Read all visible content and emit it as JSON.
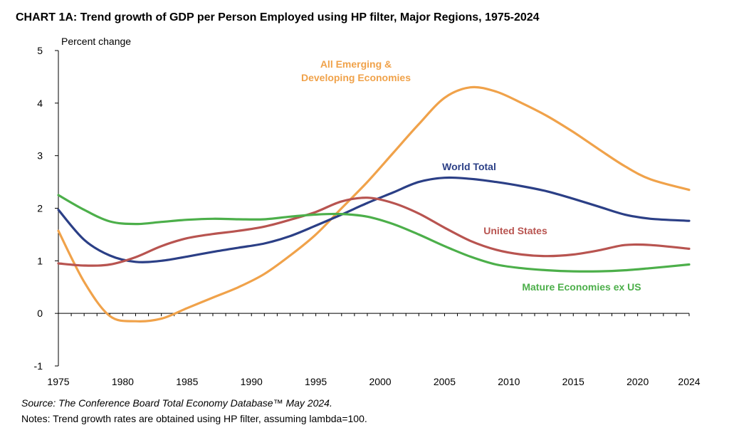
{
  "chart_data": {
    "type": "line",
    "title": "CHART 1A: Trend growth of GDP per Person Employed using HP filter, Major Regions, 1975-2024",
    "ylabel": "Percent change",
    "xlabel": "",
    "ylim": [
      -1,
      5
    ],
    "xlim": [
      1975,
      2024
    ],
    "y_ticks": [
      "5",
      "4",
      "3",
      "2",
      "1",
      "0",
      "-1"
    ],
    "y_tick_values": [
      5,
      4,
      3,
      2,
      1,
      0,
      -1
    ],
    "x_ticks": [
      "1975",
      "1980",
      "1985",
      "1990",
      "1995",
      "2000",
      "2005",
      "2010",
      "2015",
      "2020",
      "2024"
    ],
    "x_tick_values": [
      1975,
      1980,
      1985,
      1990,
      1995,
      2000,
      2005,
      2010,
      2015,
      2020,
      2024
    ],
    "grid": false,
    "legend": "inline labels",
    "series": [
      {
        "name": "All Emerging & Developing Economies",
        "label_lines": [
          "All Emerging &",
          "Developing Economies"
        ],
        "color": "#F0A24A",
        "x": [
          1975,
          1977,
          1979,
          1981,
          1983,
          1985,
          1987,
          1989,
          1991,
          1993,
          1995,
          1997,
          1999,
          2001,
          2003,
          2005,
          2007,
          2009,
          2011,
          2013,
          2015,
          2017,
          2019,
          2021,
          2024
        ],
        "values": [
          1.57,
          0.6,
          -0.05,
          -0.15,
          -0.1,
          0.1,
          0.3,
          0.5,
          0.75,
          1.1,
          1.5,
          2.0,
          2.5,
          3.05,
          3.6,
          4.1,
          4.3,
          4.22,
          4.0,
          3.75,
          3.45,
          3.12,
          2.8,
          2.55,
          2.35
        ]
      },
      {
        "name": "World Total",
        "label_lines": [
          "World Total"
        ],
        "color": "#2B3F86",
        "x": [
          1975,
          1977,
          1979,
          1981,
          1983,
          1985,
          1987,
          1989,
          1991,
          1993,
          1995,
          1997,
          1999,
          2001,
          2003,
          2005,
          2007,
          2009,
          2011,
          2013,
          2015,
          2017,
          2019,
          2021,
          2024
        ],
        "values": [
          1.97,
          1.4,
          1.1,
          0.98,
          1.0,
          1.08,
          1.17,
          1.25,
          1.33,
          1.47,
          1.67,
          1.88,
          2.1,
          2.3,
          2.5,
          2.58,
          2.56,
          2.5,
          2.42,
          2.32,
          2.18,
          2.03,
          1.88,
          1.8,
          1.76
        ]
      },
      {
        "name": "United States",
        "label_lines": [
          "United States"
        ],
        "color": "#B85450",
        "x": [
          1975,
          1977,
          1979,
          1981,
          1983,
          1985,
          1987,
          1989,
          1991,
          1993,
          1995,
          1997,
          1999,
          2001,
          2003,
          2005,
          2007,
          2009,
          2011,
          2013,
          2015,
          2017,
          2019,
          2021,
          2024
        ],
        "values": [
          0.95,
          0.91,
          0.93,
          1.07,
          1.28,
          1.43,
          1.51,
          1.57,
          1.65,
          1.78,
          1.93,
          2.13,
          2.2,
          2.1,
          1.9,
          1.63,
          1.38,
          1.21,
          1.12,
          1.09,
          1.12,
          1.2,
          1.3,
          1.3,
          1.23
        ]
      },
      {
        "name": "Mature Economies ex US",
        "label_lines": [
          "Mature Economies ex US"
        ],
        "color": "#4CAF4A",
        "x": [
          1975,
          1977,
          1979,
          1981,
          1983,
          1985,
          1987,
          1989,
          1991,
          1993,
          1995,
          1997,
          1999,
          2001,
          2003,
          2005,
          2007,
          2009,
          2011,
          2013,
          2015,
          2017,
          2019,
          2021,
          2024
        ],
        "values": [
          2.25,
          1.97,
          1.75,
          1.7,
          1.74,
          1.78,
          1.8,
          1.79,
          1.79,
          1.84,
          1.88,
          1.89,
          1.84,
          1.7,
          1.5,
          1.28,
          1.08,
          0.93,
          0.86,
          0.82,
          0.8,
          0.8,
          0.82,
          0.86,
          0.93
        ]
      }
    ],
    "source": "Source: The Conference Board Total Economy Database™ May 2024.",
    "notes": "Notes: Trend growth rates are obtained using HP filter, assuming lambda=100."
  }
}
